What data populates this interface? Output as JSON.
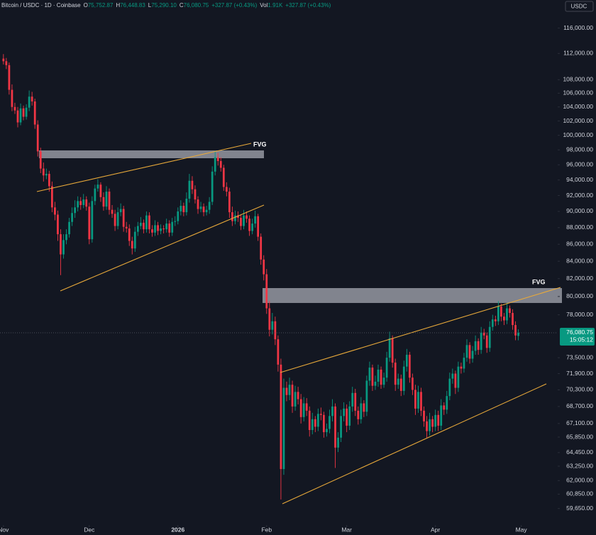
{
  "chart_data": {
    "type": "candlestick",
    "header": {
      "symbol": "Bitcoin / USDC · 1D · Coinbase",
      "quote": [
        {
          "key": "O",
          "value": "75,752.87"
        },
        {
          "key": "H",
          "value": "76,448.83"
        },
        {
          "key": "L",
          "value": "75,290.10"
        },
        {
          "key": "C",
          "value": "76,080.75"
        }
      ],
      "change": "+327.87 (+0.43%)",
      "volume_key": "Vol",
      "volume": "1.91K",
      "volume_change": "+327.87 (+0.43%)"
    },
    "currency": "USDC",
    "annotations": [
      "FVG",
      "FVG"
    ],
    "last_price": {
      "value": 76080.75,
      "label": "76,080.75"
    },
    "countdown": "15:05:12",
    "up_color": "#089981",
    "down_color": "#f23645",
    "log_scale": true,
    "grid": false,
    "xlim": [
      -1.2,
      193.5
    ],
    "xticks": [
      {
        "value": 0,
        "label": "Nov"
      },
      {
        "value": 30,
        "label": "Dec"
      },
      {
        "value": 61,
        "label": "2026"
      },
      {
        "value": 92,
        "label": "Feb"
      },
      {
        "value": 120,
        "label": "Mar"
      },
      {
        "value": 151,
        "label": "Apr"
      },
      {
        "value": 181,
        "label": "May"
      }
    ],
    "ylim": [
      58300,
      120600
    ],
    "yticks": [
      {
        "value": 116000,
        "label": "116,000.00"
      },
      {
        "value": 112000,
        "label": "112,000.00"
      },
      {
        "value": 108000,
        "label": "108,000.00"
      },
      {
        "value": 106000,
        "label": "106,000.00"
      },
      {
        "value": 104000,
        "label": "104,000.00"
      },
      {
        "value": 102000,
        "label": "102,000.00"
      },
      {
        "value": 100000,
        "label": "100,000.00"
      },
      {
        "value": 98000,
        "label": "98,000.00"
      },
      {
        "value": 96000,
        "label": "96,000.00"
      },
      {
        "value": 94000,
        "label": "94,000.00"
      },
      {
        "value": 92000,
        "label": "92,000.00"
      },
      {
        "value": 90000,
        "label": "90,000.00"
      },
      {
        "value": 88000,
        "label": "88,000.00"
      },
      {
        "value": 86000,
        "label": "86,000.00"
      },
      {
        "value": 84000,
        "label": "84,000.00"
      },
      {
        "value": 82000,
        "label": "82,000.00"
      },
      {
        "value": 80000,
        "label": "80,000.00"
      },
      {
        "value": 78000,
        "label": "78,000.00"
      },
      {
        "value": 73500,
        "label": "73,500.00"
      },
      {
        "value": 71900,
        "label": "71,900.00"
      },
      {
        "value": 70300,
        "label": "70,300.00"
      },
      {
        "value": 68700,
        "label": "68,700.00"
      },
      {
        "value": 67100,
        "label": "67,100.00"
      },
      {
        "value": 65850,
        "label": "65,850.00"
      },
      {
        "value": 64450,
        "label": "64,450.00"
      },
      {
        "value": 63250,
        "label": "63,250.00"
      },
      {
        "value": 62000,
        "label": "62,000.00"
      },
      {
        "value": 60850,
        "label": "60,850.00"
      },
      {
        "value": 59650,
        "label": "59,650.00"
      }
    ],
    "x": [
      0,
      1,
      2,
      3,
      4,
      5,
      6,
      7,
      8,
      9,
      10,
      11,
      12,
      13,
      14,
      15,
      16,
      17,
      18,
      19,
      20,
      21,
      22,
      23,
      24,
      25,
      26,
      27,
      28,
      29,
      30,
      31,
      32,
      33,
      34,
      35,
      36,
      37,
      38,
      39,
      40,
      41,
      42,
      43,
      44,
      45,
      46,
      47,
      48,
      49,
      50,
      51,
      52,
      53,
      54,
      55,
      56,
      57,
      58,
      59,
      60,
      61,
      62,
      63,
      64,
      65,
      66,
      67,
      68,
      69,
      70,
      71,
      72,
      73,
      74,
      75,
      76,
      77,
      78,
      79,
      80,
      81,
      82,
      83,
      84,
      85,
      86,
      87,
      88,
      89,
      90,
      91,
      92,
      93,
      94,
      95,
      96,
      97,
      98,
      99,
      100,
      101,
      102,
      103,
      104,
      105,
      106,
      107,
      108,
      109,
      110,
      111,
      112,
      113,
      114,
      115,
      116,
      117,
      118,
      119,
      120,
      121,
      122,
      123,
      124,
      125,
      126,
      127,
      128,
      129,
      130,
      131,
      132,
      133,
      134,
      135,
      136,
      137,
      138,
      139,
      140,
      141,
      142,
      143,
      144,
      145,
      146,
      147,
      148,
      149,
      150,
      151,
      152,
      153,
      154,
      155,
      156,
      157,
      158,
      159,
      160,
      161,
      162,
      163,
      164,
      165,
      166,
      167,
      168,
      169,
      170,
      171,
      172,
      173,
      174,
      175,
      176,
      177,
      178,
      179,
      180
    ],
    "open": [
      111200,
      110800,
      110200,
      106500,
      104000,
      103500,
      101800,
      103800,
      102600,
      103900,
      105500,
      104800,
      101500,
      97800,
      95500,
      94600,
      94800,
      93200,
      90500,
      89600,
      87200,
      84800,
      86500,
      87200,
      88700,
      89800,
      90500,
      91300,
      90800,
      91500,
      90600,
      86600,
      91300,
      92900,
      93400,
      91800,
      90600,
      92500,
      90200,
      89700,
      88200,
      89900,
      90300,
      88100,
      87900,
      86400,
      85500,
      87500,
      88200,
      88600,
      87800,
      89500,
      87800,
      87400,
      88300,
      87600,
      87900,
      87800,
      88500,
      87400,
      88700,
      88800,
      90000,
      90700,
      89900,
      91600,
      93900,
      92800,
      91500,
      90300,
      90600,
      89900,
      90200,
      91200,
      95100,
      97000,
      96500,
      95600,
      93100,
      92500,
      89900,
      88800,
      89500,
      89200,
      88200,
      89500,
      89100,
      87600,
      88500,
      89400,
      86900,
      84200,
      82500,
      78700,
      76400,
      77300,
      75400,
      72800,
      63000,
      70500,
      69800,
      70800,
      68700,
      70100,
      69400,
      67700,
      69000,
      68300,
      66500,
      67500,
      66800,
      68000,
      67900,
      66300,
      66600,
      67800,
      68700,
      64900,
      65800,
      67800,
      68500,
      66900,
      68700,
      70000,
      68300,
      67500,
      69000,
      68200,
      71200,
      72500,
      70700,
      71100,
      72300,
      70800,
      71500,
      73500,
      75500,
      73000,
      70800,
      71400,
      70200,
      72600,
      73800,
      71500,
      70300,
      68500,
      70100,
      68300,
      67300,
      66400,
      67500,
      66800,
      67900,
      66900,
      68800,
      68400,
      69700,
      71400,
      71900,
      70500,
      72600,
      72400,
      73500,
      74800,
      73400,
      74200,
      75200,
      74300,
      76100,
      75800,
      74500,
      76700,
      77500,
      77300,
      78900,
      77800,
      77400,
      78700,
      78200,
      76900,
      75752.87
    ],
    "high": [
      111900,
      111300,
      110600,
      107300,
      104600,
      104000,
      104500,
      104200,
      104400,
      106400,
      106200,
      105200,
      102100,
      98300,
      96300,
      95500,
      95200,
      93800,
      91200,
      90100,
      87800,
      87200,
      87800,
      89200,
      90500,
      91400,
      91900,
      91800,
      92200,
      91900,
      91100,
      91900,
      93400,
      94100,
      93700,
      92400,
      93200,
      92900,
      90800,
      90200,
      90500,
      91000,
      90700,
      88700,
      88400,
      86900,
      88100,
      88700,
      89300,
      89000,
      90000,
      89900,
      88300,
      88900,
      88700,
      88400,
      88300,
      89100,
      88900,
      89200,
      89400,
      90500,
      91400,
      91100,
      92400,
      94800,
      94500,
      93300,
      91900,
      91200,
      91000,
      90700,
      91800,
      95800,
      97900,
      97600,
      97000,
      96000,
      93700,
      93000,
      90600,
      90100,
      90000,
      89600,
      90200,
      90000,
      89500,
      89100,
      90100,
      89700,
      87300,
      84700,
      83100,
      79500,
      78200,
      77800,
      75800,
      73400,
      71400,
      71100,
      71500,
      71200,
      70700,
      70600,
      69900,
      69600,
      69500,
      68700,
      68100,
      67800,
      68500,
      68600,
      68200,
      67100,
      68400,
      69400,
      69000,
      66300,
      68400,
      69100,
      68900,
      69200,
      70600,
      70400,
      68700,
      69600,
      69300,
      71700,
      73100,
      72800,
      71700,
      72800,
      72600,
      72000,
      74100,
      76200,
      75800,
      73400,
      71900,
      71800,
      73200,
      74400,
      74100,
      71900,
      70800,
      70700,
      70500,
      68700,
      67800,
      68100,
      67800,
      68400,
      68300,
      69400,
      69100,
      70200,
      72000,
      72400,
      72200,
      73100,
      73000,
      74000,
      75400,
      75100,
      74700,
      75800,
      75500,
      76700,
      76500,
      76100,
      77300,
      78000,
      77900,
      79500,
      79200,
      78200,
      79300,
      79000,
      78600,
      77300,
      76448.83
    ],
    "low": [
      110300,
      109600,
      105800,
      103400,
      103000,
      101100,
      101400,
      102100,
      102200,
      103400,
      104200,
      100900,
      97100,
      94900,
      93800,
      94100,
      92500,
      89900,
      88900,
      86400,
      82400,
      84300,
      86000,
      86800,
      88200,
      89200,
      90000,
      90200,
      90400,
      90100,
      86000,
      86200,
      90800,
      92500,
      91200,
      90100,
      90200,
      89600,
      89200,
      87600,
      87800,
      89400,
      87500,
      87400,
      85800,
      84800,
      85100,
      87000,
      87800,
      87300,
      87400,
      87300,
      86900,
      87000,
      87100,
      87200,
      87300,
      87400,
      86900,
      87000,
      88200,
      88400,
      89500,
      89400,
      89500,
      91100,
      92200,
      91000,
      89700,
      89900,
      89400,
      89500,
      89700,
      90800,
      94600,
      95900,
      95100,
      92600,
      91900,
      89200,
      88200,
      88400,
      88700,
      87700,
      87800,
      88600,
      87000,
      87200,
      88000,
      86400,
      83600,
      81800,
      78100,
      75700,
      75900,
      74800,
      72100,
      60400,
      62500,
      69200,
      69300,
      68100,
      68300,
      68900,
      67100,
      67300,
      67800,
      65900,
      66100,
      66300,
      66400,
      67400,
      65800,
      65900,
      66200,
      67300,
      63100,
      64500,
      65400,
      67300,
      66300,
      66500,
      68200,
      67800,
      67000,
      67100,
      67700,
      67800,
      70700,
      70200,
      70300,
      70600,
      70400,
      70500,
      71100,
      73100,
      72500,
      70200,
      70400,
      69700,
      69800,
      72100,
      71000,
      69800,
      67900,
      68100,
      67800,
      66800,
      65800,
      66000,
      66300,
      66400,
      66400,
      66500,
      67900,
      68000,
      69300,
      70900,
      69900,
      70100,
      71900,
      72000,
      73100,
      72900,
      73000,
      73800,
      73800,
      73900,
      75400,
      74000,
      74100,
      76300,
      76800,
      76900,
      77300,
      76900,
      77000,
      77700,
      76400,
      75300,
      75290.1
    ],
    "close": [
      110800,
      110200,
      106500,
      104000,
      103500,
      101800,
      103800,
      102600,
      103900,
      105500,
      104800,
      101500,
      97800,
      95500,
      94600,
      94800,
      93200,
      90500,
      89600,
      87200,
      84800,
      86500,
      87200,
      88700,
      89800,
      90500,
      91300,
      90800,
      91500,
      90600,
      86600,
      91300,
      92900,
      93400,
      91800,
      90600,
      92500,
      90200,
      89700,
      88200,
      89900,
      90300,
      88100,
      87900,
      86400,
      85500,
      87500,
      88200,
      88600,
      87800,
      89500,
      87800,
      87400,
      88300,
      87600,
      87900,
      87800,
      88500,
      87400,
      88700,
      88800,
      90000,
      90700,
      89900,
      91600,
      93900,
      92800,
      91500,
      90300,
      90600,
      89900,
      90200,
      91200,
      95100,
      97000,
      96500,
      95600,
      93100,
      92500,
      89900,
      88800,
      89500,
      89200,
      88200,
      89500,
      89100,
      87600,
      88500,
      89400,
      86900,
      84200,
      82500,
      78700,
      76400,
      77300,
      75400,
      72800,
      63000,
      70500,
      69800,
      70800,
      68700,
      70100,
      69400,
      67700,
      69000,
      68300,
      66500,
      67500,
      66800,
      68000,
      67900,
      66300,
      66600,
      67800,
      68700,
      64900,
      65800,
      67800,
      68500,
      66900,
      68700,
      70000,
      68300,
      67500,
      69000,
      68200,
      71200,
      72500,
      70700,
      71100,
      72300,
      70800,
      71500,
      73500,
      75500,
      73000,
      70800,
      71400,
      70200,
      72600,
      73800,
      71500,
      70300,
      68500,
      70100,
      68300,
      67300,
      66400,
      67500,
      66800,
      67900,
      66900,
      68800,
      68400,
      69700,
      71400,
      71900,
      70500,
      72600,
      72400,
      73500,
      74800,
      73400,
      74200,
      75200,
      74300,
      76100,
      75800,
      74500,
      76700,
      77500,
      77300,
      78900,
      77800,
      77400,
      78700,
      78200,
      76900,
      75800,
      76080.75
    ]
  }
}
